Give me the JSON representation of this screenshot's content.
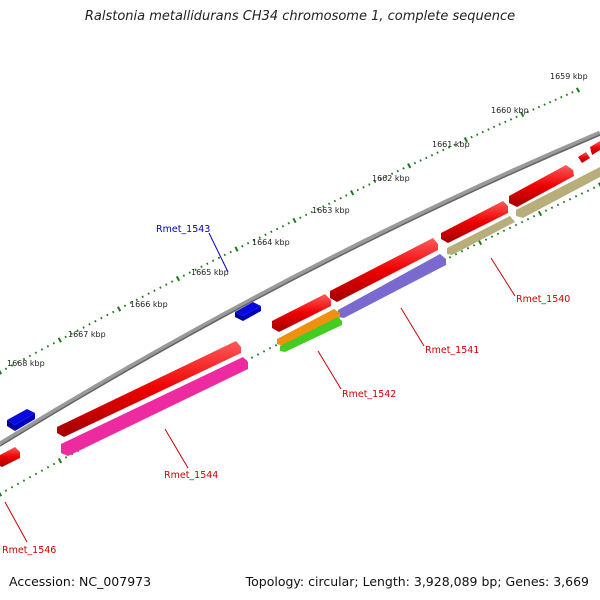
{
  "title": "Ralstonia metallidurans CH34 chromosome 1, complete sequence",
  "footer": {
    "accession": "Accession: NC_007973",
    "stats": "Topology: circular; Length: 3,928,089 bp; Genes: 3,669"
  },
  "ticks": [
    "1659 kbp",
    "1660 kbp",
    "1661 kbp",
    "1662 kbp",
    "1663 kbp",
    "1664 kbp",
    "1665 kbp",
    "1666 kbp",
    "1667 kbp",
    "1668 kbp"
  ],
  "genes": [
    {
      "label": "Rmet_1540",
      "color": "#cc0000"
    },
    {
      "label": "Rmet_1541",
      "color": "#cc0000"
    },
    {
      "label": "Rmet_1542",
      "color": "#cc0000"
    },
    {
      "label": "Rmet_1543",
      "color": "#0000bb"
    },
    {
      "label": "Rmet_1544",
      "color": "#cc0000"
    },
    {
      "label": "Rmet_1546",
      "color": "#cc0000"
    }
  ],
  "colors": {
    "cds": "#ee0000",
    "cds_reverse_blue": "#0000ee",
    "rrna_olive": "#b5ab78",
    "purple": "#7766cc",
    "magenta": "#ee2aa0",
    "orange": "#f09010",
    "green": "#44cc22",
    "backbone": "#808080",
    "tick": "#1a7a1a"
  }
}
